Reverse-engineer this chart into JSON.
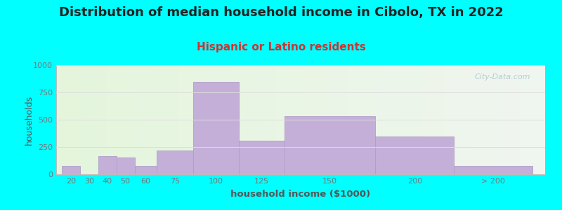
{
  "title": "Distribution of median household income in Cibolo, TX in 2022",
  "subtitle": "Hispanic or Latino residents",
  "xlabel": "household income ($1000)",
  "ylabel": "households",
  "background_color": "#00FFFF",
  "bar_color": "#c4afd8",
  "bar_edge_color": "#b09ec8",
  "categories": [
    "20",
    "30",
    "40",
    "50",
    "60",
    "75",
    "100",
    "125",
    "150",
    "200",
    "> 200"
  ],
  "values": [
    80,
    0,
    165,
    155,
    80,
    215,
    845,
    310,
    535,
    345,
    80
  ],
  "bar_lefts": [
    15,
    25,
    35,
    45,
    55,
    67,
    87,
    112,
    137,
    187,
    230
  ],
  "bar_widths": [
    10,
    10,
    10,
    10,
    12,
    20,
    25,
    25,
    50,
    43,
    43
  ],
  "xlim": [
    12,
    280
  ],
  "ylim": [
    0,
    1000
  ],
  "yticks": [
    0,
    250,
    500,
    750,
    1000
  ],
  "watermark": "City-Data.com",
  "title_fontsize": 13,
  "subtitle_fontsize": 11,
  "subtitle_color": "#cc3333",
  "tick_color": "#777777",
  "label_color": "#555555",
  "grid_color": "#dddddd",
  "bg_left_color": "#e4f5dc",
  "bg_right_color": "#f0f5f0"
}
